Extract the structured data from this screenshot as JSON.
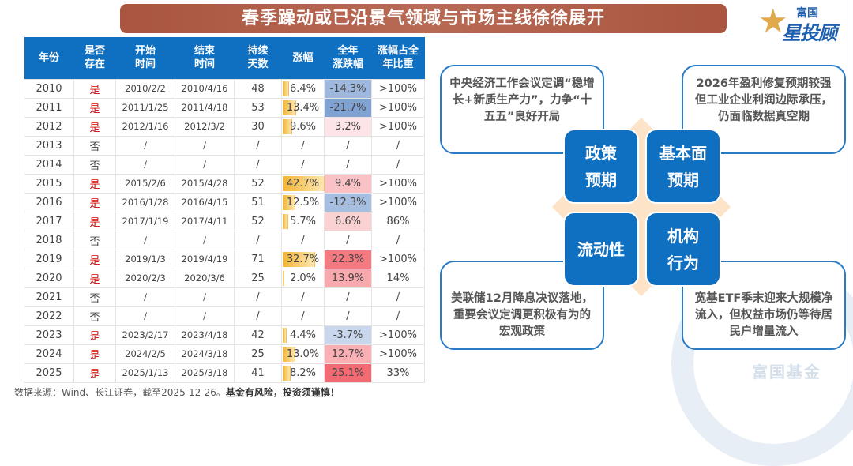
{
  "title": "春季躁动或已沿景气领域与市场主线徐徐展开",
  "logo": {
    "line1": "富国",
    "line2": "星投顾"
  },
  "watermark": "富国基金",
  "table": {
    "headers": [
      [
        "年份"
      ],
      [
        "是否",
        "存在"
      ],
      [
        "开始",
        "时间"
      ],
      [
        "结束",
        "时间"
      ],
      [
        "持续",
        "天数"
      ],
      [
        "涨幅"
      ],
      [
        "全年",
        "涨跌幅"
      ],
      [
        "涨幅占全",
        "年比重"
      ]
    ],
    "rows": [
      [
        "2010",
        "是",
        "2010/2/2",
        "2010/4/16",
        "48",
        "6.4%",
        "-14.3%",
        ">100%"
      ],
      [
        "2011",
        "是",
        "2011/1/25",
        "2011/4/18",
        "53",
        "13.4%",
        "-21.7%",
        ">100%"
      ],
      [
        "2012",
        "是",
        "2012/1/16",
        "2012/3/2",
        "30",
        "9.6%",
        "3.2%",
        ">100%"
      ],
      [
        "2013",
        "否",
        "/",
        "/",
        "/",
        "/",
        "/",
        "/"
      ],
      [
        "2014",
        "否",
        "/",
        "/",
        "/",
        "/",
        "/",
        "/"
      ],
      [
        "2015",
        "是",
        "2015/2/6",
        "2015/4/28",
        "52",
        "42.7%",
        "9.4%",
        ">100%"
      ],
      [
        "2016",
        "是",
        "2016/1/28",
        "2016/4/15",
        "51",
        "12.5%",
        "-12.3%",
        ">100%"
      ],
      [
        "2017",
        "是",
        "2017/1/19",
        "2017/4/11",
        "52",
        "5.7%",
        "6.6%",
        "86%"
      ],
      [
        "2018",
        "否",
        "/",
        "/",
        "/",
        "/",
        "/",
        "/"
      ],
      [
        "2019",
        "是",
        "2019/1/3",
        "2019/4/19",
        "71",
        "32.7%",
        "22.3%",
        ">100%"
      ],
      [
        "2020",
        "是",
        "2020/2/3",
        "2020/3/6",
        "25",
        "2.0%",
        "13.9%",
        "14%"
      ],
      [
        "2021",
        "否",
        "/",
        "/",
        "/",
        "/",
        "/",
        "/"
      ],
      [
        "2022",
        "否",
        "/",
        "/",
        "/",
        "/",
        "/",
        "/"
      ],
      [
        "2023",
        "是",
        "2023/2/17",
        "2023/4/18",
        "42",
        "4.4%",
        "-3.7%",
        ">100%"
      ],
      [
        "2024",
        "是",
        "2024/2/5",
        "2024/3/18",
        "25",
        "13.0%",
        "12.7%",
        ">100%"
      ],
      [
        "2025",
        "是",
        "2025/1/13",
        "2025/3/18",
        "41",
        "8.2%",
        "25.1%",
        "33%"
      ]
    ],
    "colors": {
      "header": "#0f6fc0",
      "yes": "#cc0000",
      "positive": "#f26b6b",
      "negative": "#5b88c6",
      "bar": "#f4b433"
    }
  },
  "footnote": {
    "source": "数据来源：Wind、长江证券，截至2025-12-26。",
    "warning": "基金有风险，投资须谨慎！"
  },
  "quadrants": [
    {
      "label": "政策预期",
      "lines": [
        "政策",
        "预期"
      ],
      "note": "中央经济工作会议定调“稳增长+新质生产力”，力争“十五五”良好开局"
    },
    {
      "label": "基本面预期",
      "lines": [
        "基本面",
        "预期"
      ],
      "note": "2026年盈利修复预期较强但工业企业利润边际承压，仍面临数据真空期"
    },
    {
      "label": "流动性",
      "lines": [
        "流动性"
      ],
      "note": "美联储12月降息决议落地，重要会议定调更积极有为的宏观政策"
    },
    {
      "label": "机构行为",
      "lines": [
        "机构",
        "行为"
      ],
      "note": "宽基ETF季末迎来大规模净流入，但权益市场仍等待居民户增量流入"
    }
  ]
}
